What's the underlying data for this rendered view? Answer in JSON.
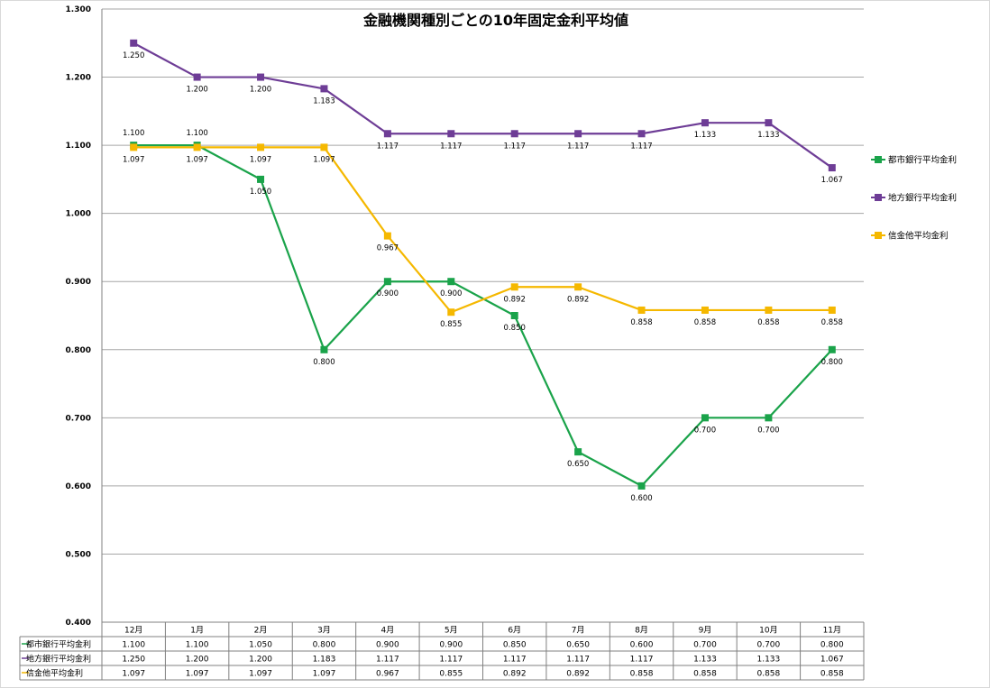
{
  "chart_data": {
    "type": "line",
    "title": "金融機関種別ごとの10年固定金利平均値",
    "categories": [
      "12月",
      "1月",
      "2月",
      "3月",
      "4月",
      "5月",
      "6月",
      "7月",
      "8月",
      "9月",
      "10月",
      "11月"
    ],
    "ylim": [
      0.4,
      1.3
    ],
    "yticks": [
      "0.400",
      "0.500",
      "0.600",
      "0.700",
      "0.800",
      "0.900",
      "1.000",
      "1.100",
      "1.200",
      "1.300"
    ],
    "grid": true,
    "legend_position": "right",
    "series": [
      {
        "name": "都市銀行平均金利",
        "color": "#1aa34a",
        "values": [
          1.1,
          1.1,
          1.05,
          0.8,
          0.9,
          0.9,
          0.85,
          0.65,
          0.6,
          0.7,
          0.7,
          0.8
        ],
        "labels": [
          "1.100",
          "1.100",
          "1.050",
          "0.800",
          "0.900",
          "0.900",
          "0.850",
          "0.650",
          "0.600",
          "0.700",
          "0.700",
          "0.800"
        ]
      },
      {
        "name": "地方銀行平均金利",
        "color": "#6e3d96",
        "values": [
          1.25,
          1.2,
          1.2,
          1.183,
          1.117,
          1.117,
          1.117,
          1.117,
          1.117,
          1.133,
          1.133,
          1.067
        ],
        "labels": [
          "1.250",
          "1.200",
          "1.200",
          "1.183",
          "1.117",
          "1.117",
          "1.117",
          "1.117",
          "1.117",
          "1.133",
          "1.133",
          "1.067"
        ]
      },
      {
        "name": "信金他平均金利",
        "color": "#f5b800",
        "values": [
          1.097,
          1.097,
          1.097,
          1.097,
          0.967,
          0.855,
          0.892,
          0.892,
          0.858,
          0.858,
          0.858,
          0.858
        ],
        "labels": [
          "1.097",
          "1.097",
          "1.097",
          "1.097",
          "0.967",
          "0.855",
          "0.892",
          "0.892",
          "0.858",
          "0.858",
          "0.858",
          "0.858"
        ]
      }
    ]
  }
}
